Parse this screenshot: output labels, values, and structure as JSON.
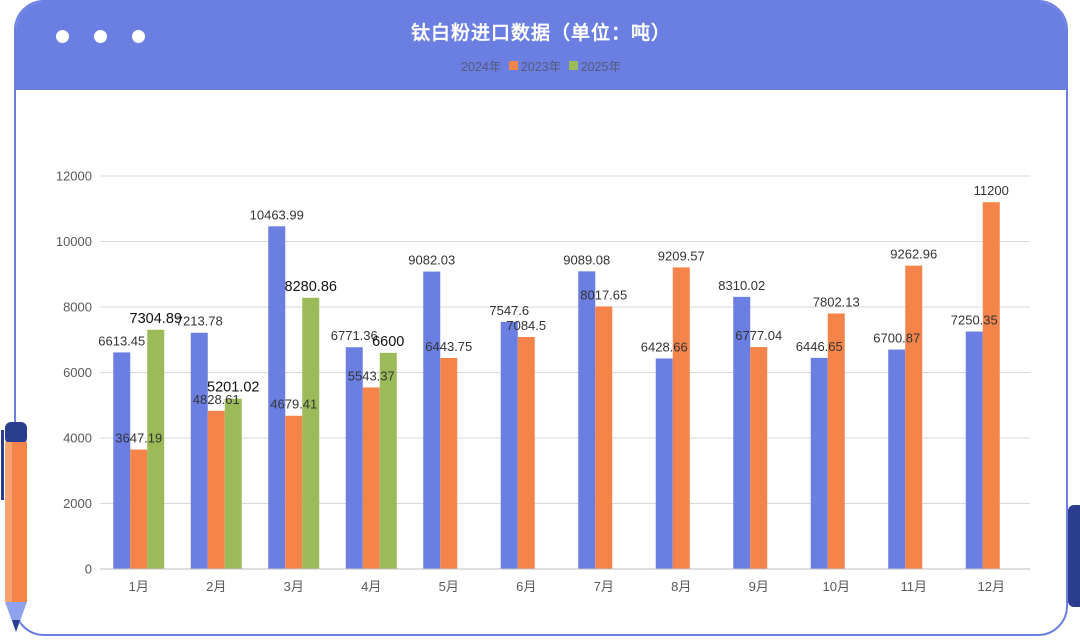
{
  "header": {
    "title": "钛白粉进口数据（单位：吨）"
  },
  "colors": {
    "frame": "#6b7fe3",
    "grid": "#d9d9d9",
    "axis_text": "#595959"
  },
  "chart_data": {
    "type": "bar",
    "title": "钛白粉进口数据（单位：吨）",
    "categories": [
      "1月",
      "2月",
      "3月",
      "4月",
      "5月",
      "6月",
      "7月",
      "8月",
      "9月",
      "10月",
      "11月",
      "12月"
    ],
    "series": [
      {
        "name": "2024年",
        "color": "#6b7fe3",
        "values": [
          6613.45,
          7213.78,
          10463.99,
          6771.36,
          9082.03,
          7547.6,
          9089.08,
          6428.66,
          8310.02,
          6446.65,
          6700.87,
          7250.35
        ],
        "labels": [
          "6613.45",
          "7213.78",
          "10463.99",
          "6771.36",
          "9082.03",
          "7547.6",
          "9089.08",
          "6428.66",
          "8310.02",
          "6446.65",
          "6700.87",
          "7250.35"
        ]
      },
      {
        "name": "2023年",
        "color": "#f4844a",
        "values": [
          3647.19,
          4828.61,
          4679.41,
          5543.37,
          6443.75,
          7084.5,
          8017.65,
          9209.57,
          6777.04,
          7802.13,
          9262.96,
          11200
        ],
        "labels": [
          "3647.19",
          "4828.61",
          "4679.41",
          "5543.37",
          "6443.75",
          "7084.5",
          "8017.65",
          "9209.57",
          "6777.04",
          "7802.13",
          "9262.96",
          "11200"
        ]
      },
      {
        "name": "2025年",
        "color": "#9bbb59",
        "values": [
          7304.89,
          5201.02,
          8280.86,
          6600,
          null,
          null,
          null,
          null,
          null,
          null,
          null,
          null
        ],
        "labels": [
          "7304.89",
          "5201.02",
          "8280.86",
          "6600",
          "",
          "",
          "",
          "",
          "",
          "",
          "",
          ""
        ]
      }
    ],
    "yticks": [
      "0",
      "2000",
      "4000",
      "6000",
      "8000",
      "10000",
      "12000"
    ],
    "ylim": [
      0,
      12000
    ],
    "grid": true,
    "legend_position": "top-center"
  }
}
